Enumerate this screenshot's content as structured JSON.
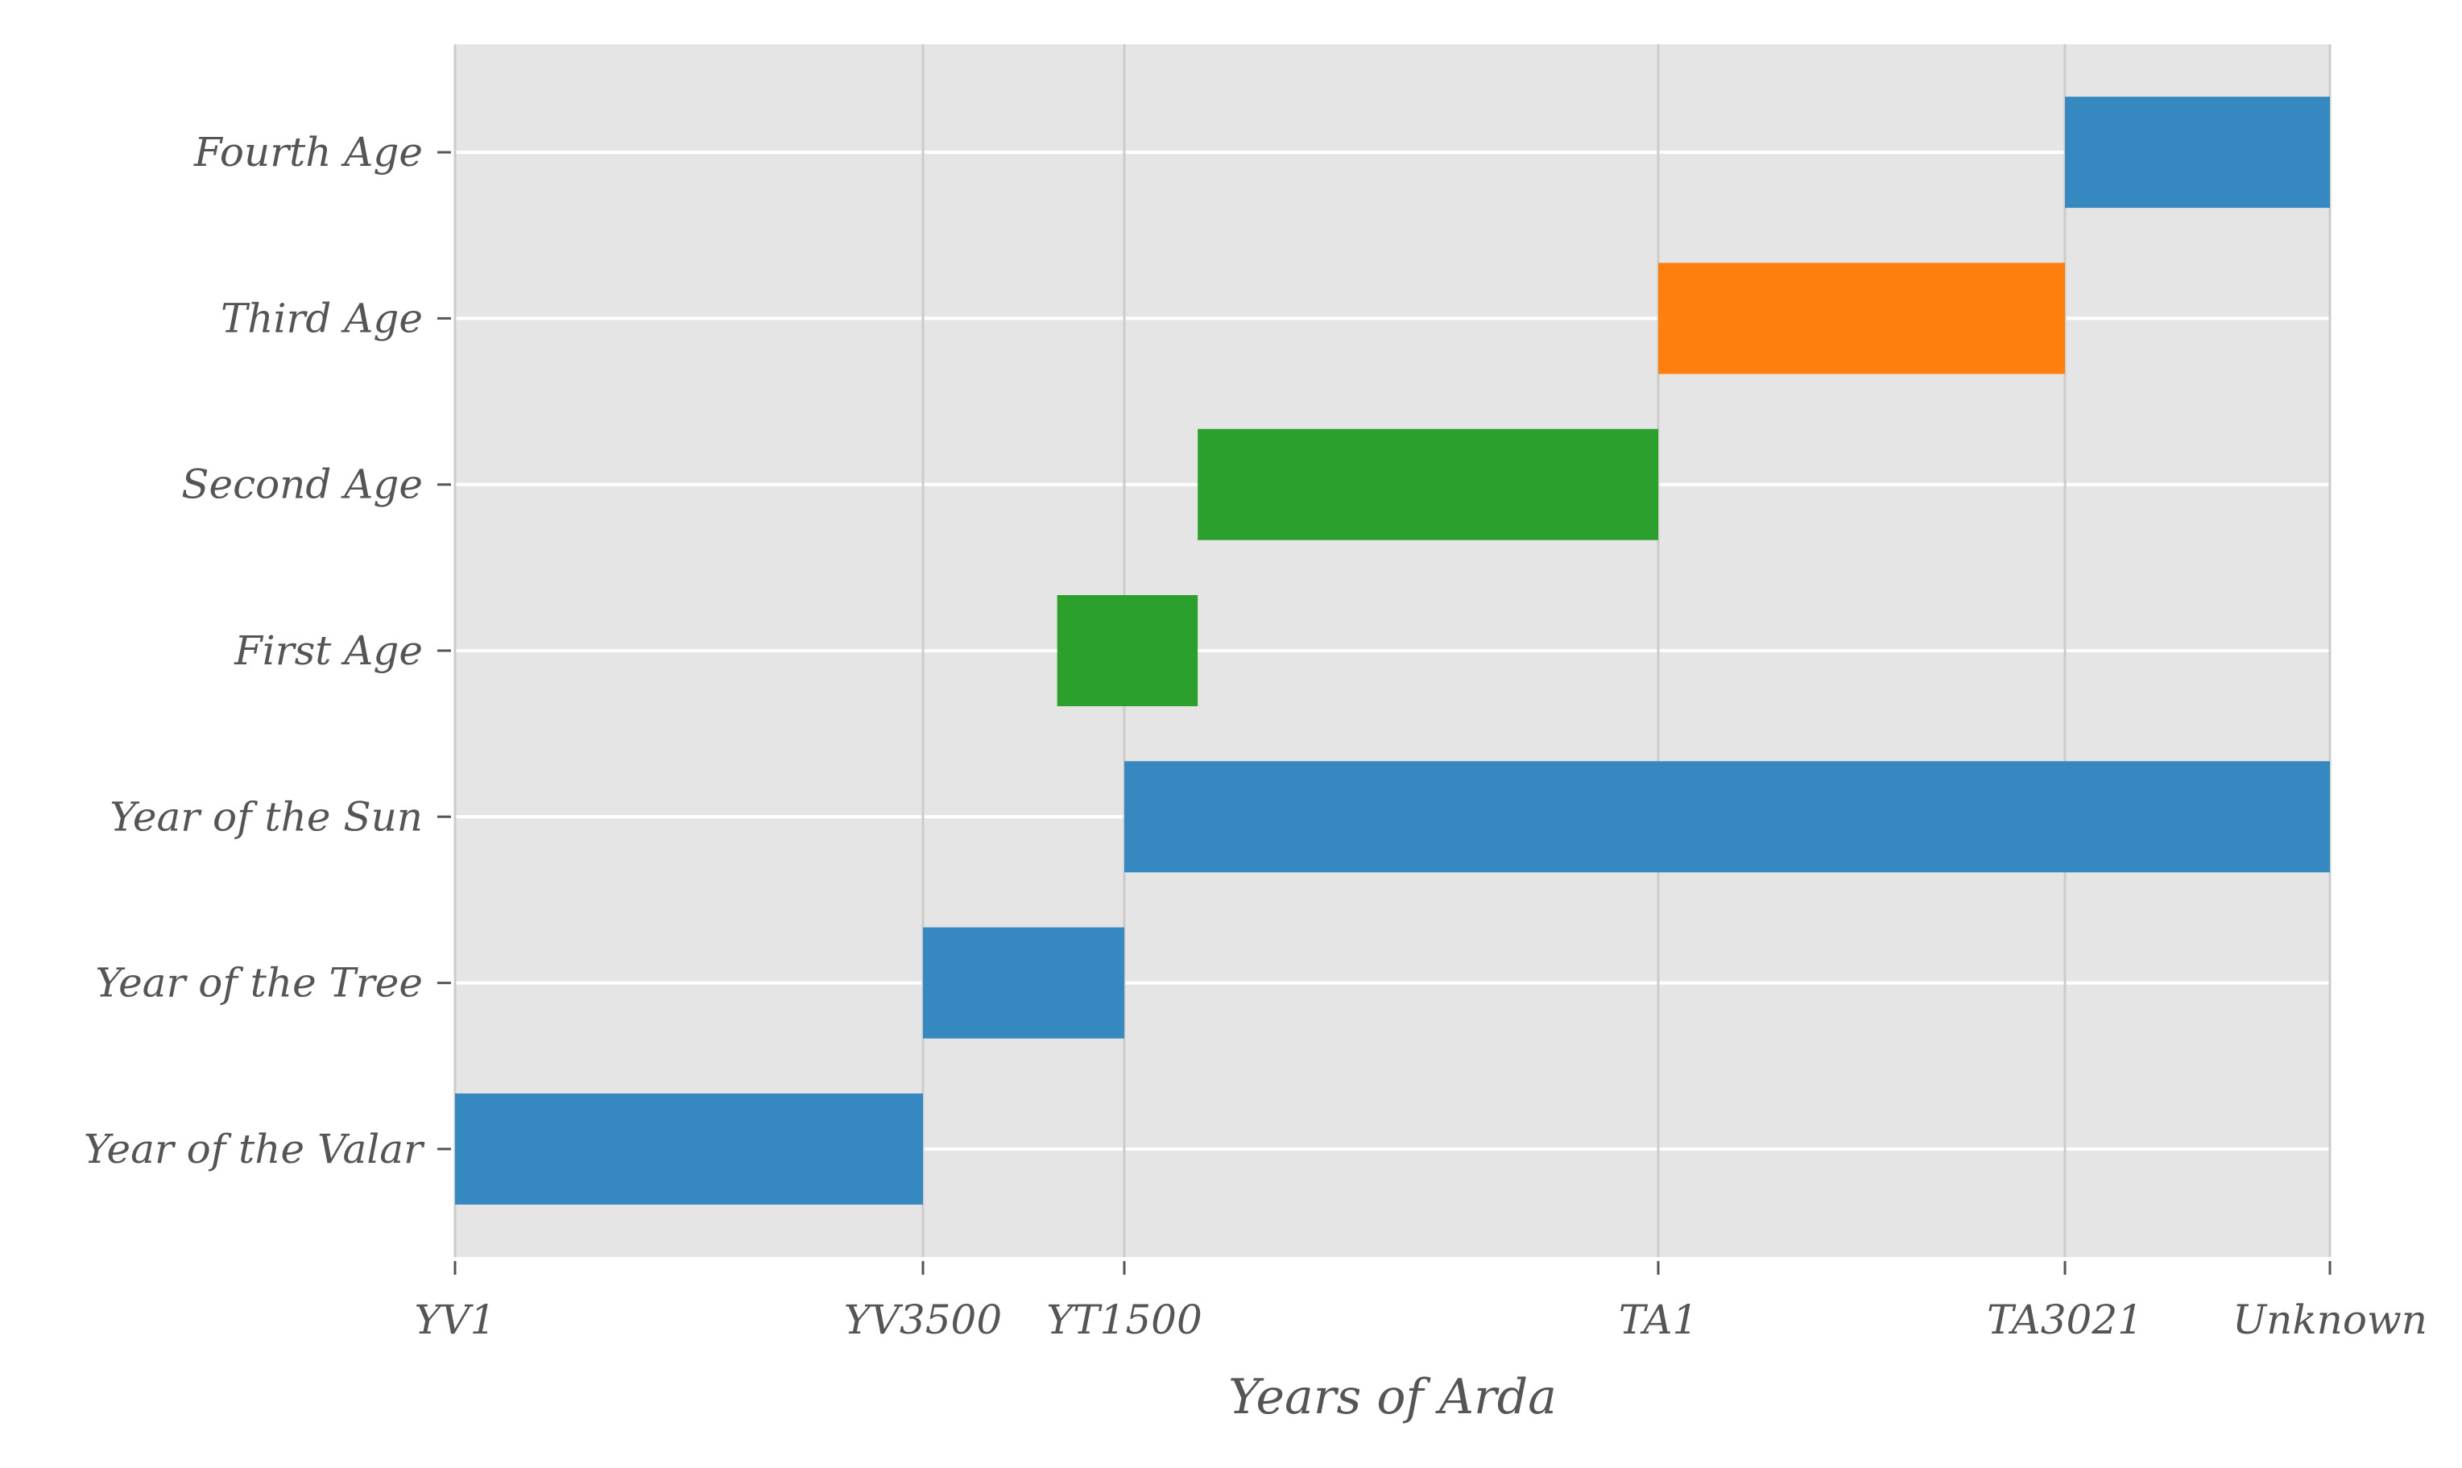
{
  "chart_data": {
    "type": "bar",
    "orientation": "horizontal",
    "title": "",
    "xlabel": "Years of Arda",
    "ylabel": "",
    "grid": true,
    "x_ticks": [
      {
        "label": "YV1",
        "value": 0
      },
      {
        "label": "YV3500",
        "value": 3500
      },
      {
        "label": "YT1500",
        "value": 5000
      },
      {
        "label": "TA1",
        "value": 9000
      },
      {
        "label": "TA3021",
        "value": 12050
      },
      {
        "label": "Unknown",
        "value": 14050
      }
    ],
    "xlim": [
      0,
      14050
    ],
    "categories": [
      "Year of the Valar",
      "Year of the Tree",
      "Year of the Sun",
      "First Age",
      "Second Age",
      "Third Age",
      "Fourth Age"
    ],
    "bars": [
      {
        "category": "Year of the Valar",
        "start": 0,
        "end": 3500,
        "color": "#3589C0"
      },
      {
        "category": "Year of the Tree",
        "start": 3500,
        "end": 5000,
        "color": "#3589C0"
      },
      {
        "category": "Year of the Sun",
        "start": 5000,
        "end": 14050,
        "color": "#3589C0"
      },
      {
        "category": "First Age",
        "start": 4500,
        "end": 5550,
        "color": "#2CA02C"
      },
      {
        "category": "Second Age",
        "start": 5550,
        "end": 9000,
        "color": "#2CA02C"
      },
      {
        "category": "Third Age",
        "start": 9000,
        "end": 12050,
        "color": "#FF7F0E"
      },
      {
        "category": "Fourth Age",
        "start": 12050,
        "end": 14050,
        "color": "#3589C0"
      }
    ],
    "colors": {
      "plot_background": "#E5E5E5",
      "grid": "#FFFFFF",
      "vertical_grid": "#CCCCCC",
      "text": "#555555"
    }
  }
}
